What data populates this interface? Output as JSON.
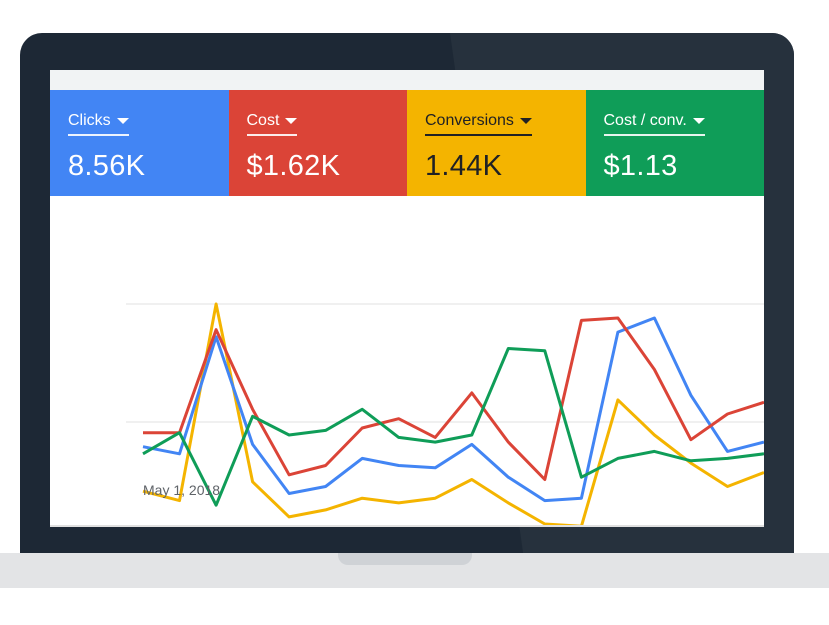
{
  "metrics": [
    {
      "label": "Clicks",
      "value": "8.56K",
      "color": "#4285f4",
      "text_color": "#ffffff"
    },
    {
      "label": "Cost",
      "value": "$1.62K",
      "color": "#db4437",
      "text_color": "#ffffff"
    },
    {
      "label": "Conversions",
      "value": "1.44K",
      "color": "#f4b400",
      "text_color": "#202124"
    },
    {
      "label": "Cost / conv.",
      "value": "$1.13",
      "color": "#0f9d58",
      "text_color": "#ffffff"
    }
  ],
  "chart_data": {
    "type": "line",
    "x_tick_label": "May 1, 2018",
    "x": [
      0,
      1,
      2,
      3,
      4,
      5,
      6,
      7,
      8,
      9,
      10,
      11,
      12,
      13,
      14,
      15,
      16,
      17
    ],
    "ylim": [
      0,
      100
    ],
    "grid": true,
    "series": [
      {
        "name": "Clicks",
        "color": "#4285f4",
        "values": [
          39,
          36,
          86,
          40,
          19,
          22,
          34,
          31,
          30,
          40,
          26,
          16,
          17,
          88,
          94,
          61,
          37,
          41
        ]
      },
      {
        "name": "Cost",
        "color": "#db4437",
        "values": [
          45,
          45,
          89,
          55,
          27,
          31,
          47,
          51,
          43,
          62,
          41,
          25,
          93,
          94,
          72,
          42,
          53,
          58
        ]
      },
      {
        "name": "Conversions",
        "color": "#f4b400",
        "values": [
          20,
          16,
          100,
          24,
          9,
          12,
          17,
          15,
          17,
          25,
          15,
          6,
          5,
          59,
          44,
          32,
          22,
          28
        ]
      },
      {
        "name": "Cost / conv.",
        "color": "#0f9d58",
        "values": [
          36,
          45,
          14,
          52,
          44,
          46,
          55,
          43,
          41,
          44,
          81,
          80,
          26,
          34,
          37,
          33,
          34,
          36
        ]
      }
    ]
  }
}
